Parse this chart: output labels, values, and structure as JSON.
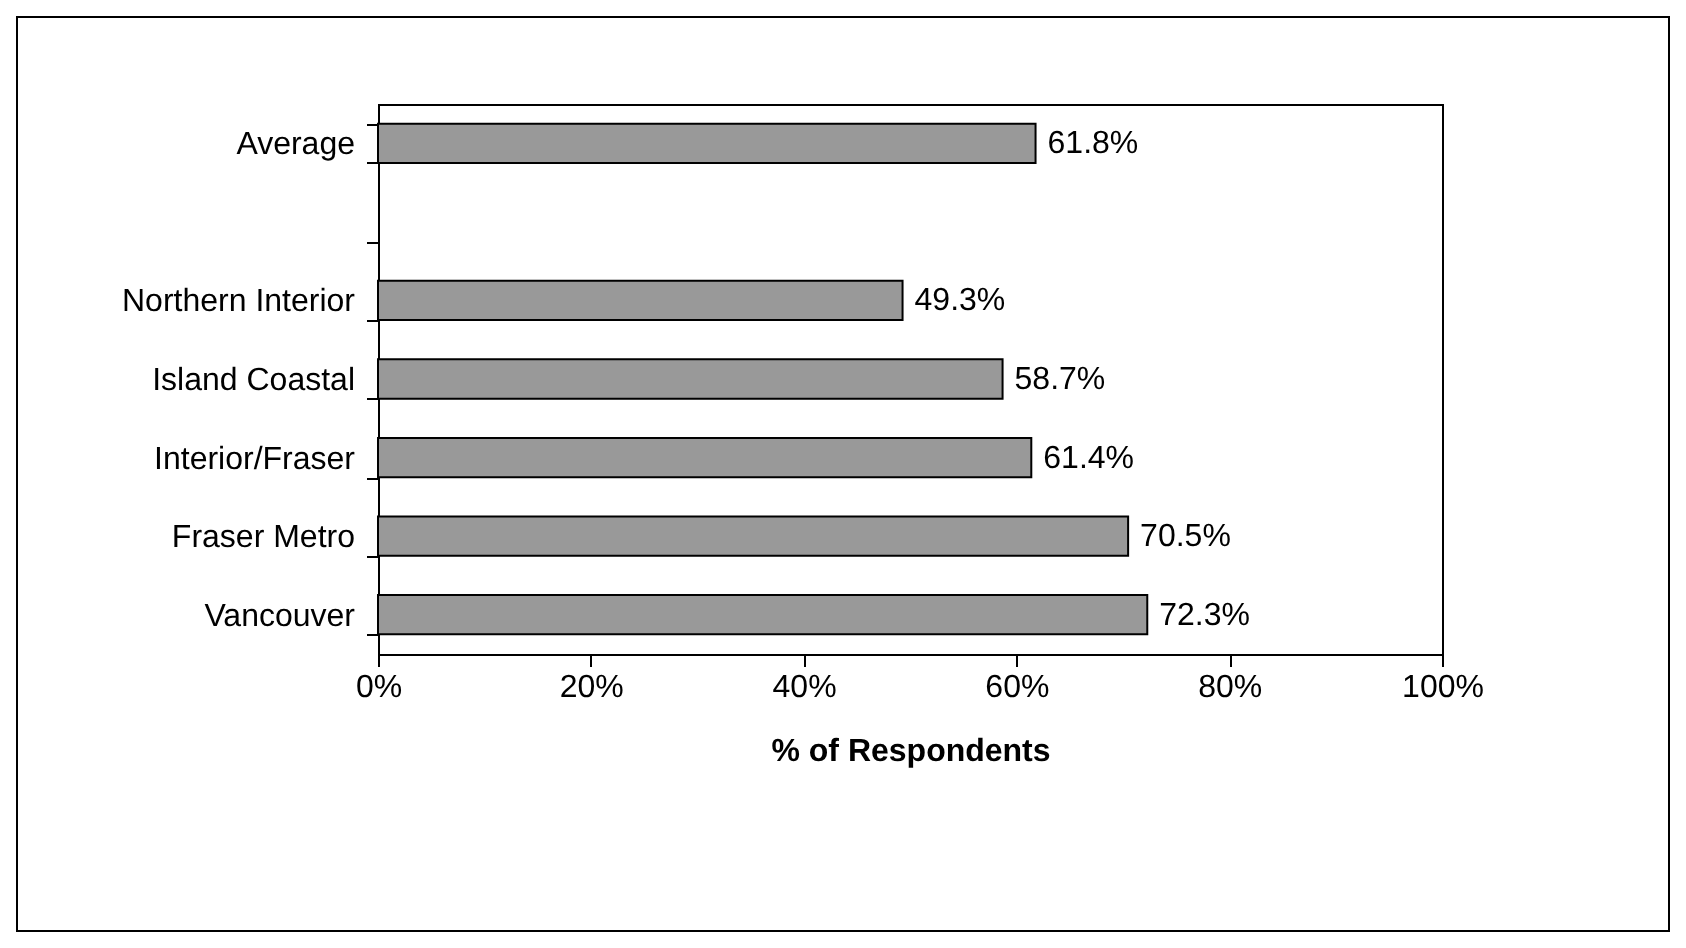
{
  "chart_data": {
    "type": "bar",
    "orientation": "horizontal",
    "categories": [
      "Average",
      null,
      "Northern Interior",
      "Island Coastal",
      "Interior/Fraser",
      "Fraser Metro",
      "Vancouver"
    ],
    "values": [
      61.8,
      null,
      49.3,
      58.7,
      61.4,
      70.5,
      72.3
    ],
    "value_labels": [
      "61.8%",
      null,
      "49.3%",
      "58.7%",
      "61.4%",
      "70.5%",
      "72.3%"
    ],
    "color": "#999999",
    "xlabel": "% of Respondents",
    "xlim": [
      0,
      100
    ],
    "xticks": [
      {
        "value": 0,
        "label": "0%"
      },
      {
        "value": 20,
        "label": "20%"
      },
      {
        "value": 40,
        "label": "40%"
      },
      {
        "value": 60,
        "label": "60%"
      },
      {
        "value": 80,
        "label": "80%"
      },
      {
        "value": 100,
        "label": "100%"
      }
    ],
    "grid": false
  }
}
